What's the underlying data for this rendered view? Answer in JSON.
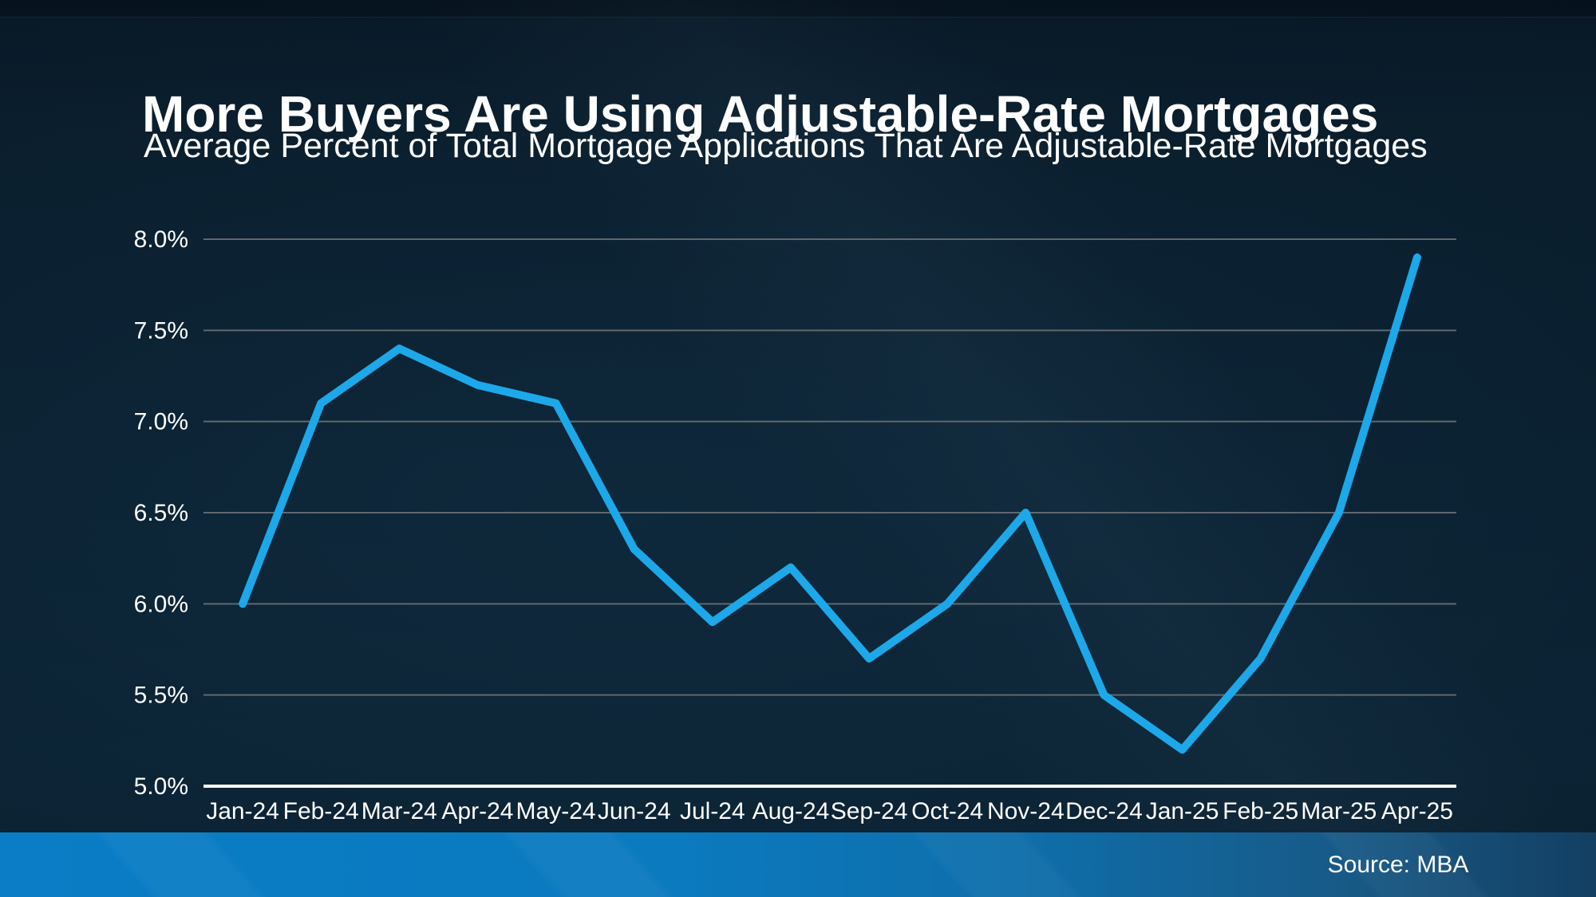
{
  "header": {
    "title": "More Buyers Are Using Adjustable-Rate Mortgages",
    "subtitle": "Average Percent of Total Mortgage Applications That Are Adjustable-Rate Mortgages"
  },
  "footer": {
    "source_label": "Source: MBA"
  },
  "colors": {
    "line": "#1CA8E9",
    "gridline": "#5F686E",
    "axis_line": "#FFFFFF",
    "text": "#FFFFFF",
    "footer_left": "#0A7DC6",
    "footer_right": "#143F63",
    "background": "#0A2030"
  },
  "chart_data": {
    "type": "line",
    "title": "More Buyers Are Using Adjustable-Rate Mortgages",
    "subtitle": "Average Percent of Total Mortgage Applications That Are Adjustable-Rate Mortgages",
    "categories": [
      "Jan-24",
      "Feb-24",
      "Mar-24",
      "Apr-24",
      "May-24",
      "Jun-24",
      "Jul-24",
      "Aug-24",
      "Sep-24",
      "Oct-24",
      "Nov-24",
      "Dec-24",
      "Jan-25",
      "Feb-25",
      "Mar-25",
      "Apr-25"
    ],
    "values": [
      6.0,
      7.1,
      7.4,
      7.2,
      7.1,
      6.3,
      5.9,
      6.2,
      5.7,
      6.0,
      6.5,
      5.5,
      5.2,
      5.7,
      6.5,
      7.9
    ],
    "xlabel": "",
    "ylabel": "",
    "ylim": [
      5.0,
      8.0
    ],
    "yticks": [
      5.0,
      5.5,
      6.0,
      6.5,
      7.0,
      7.5,
      8.0
    ],
    "ytick_labels": [
      "5.0%",
      "5.5%",
      "6.0%",
      "6.5%",
      "7.0%",
      "7.5%",
      "8.0%"
    ],
    "grid": true,
    "legend": false,
    "source": "Source: MBA"
  }
}
